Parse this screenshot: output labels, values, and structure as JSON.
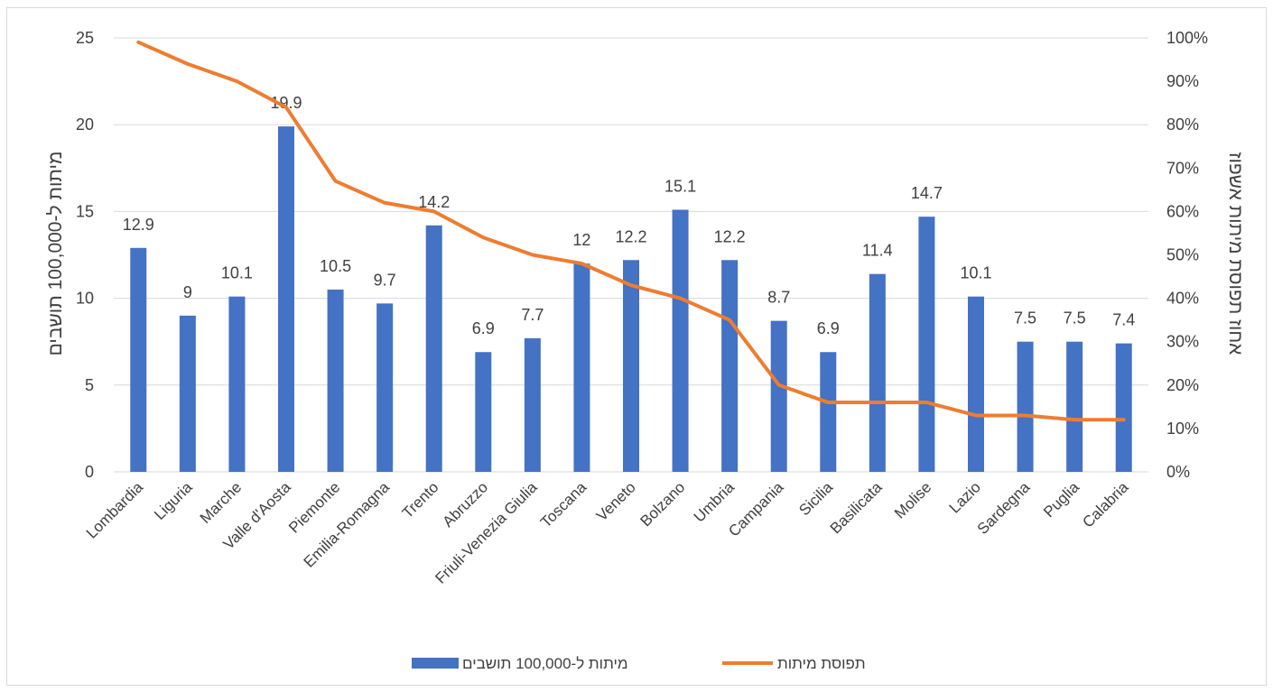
{
  "chart_data": {
    "type": "bar",
    "categories": [
      "Lombardia",
      "Liguria",
      "Marche",
      "Valle d'Aosta",
      "Piemonte",
      "Emilia-Romagna",
      "Trento",
      "Abruzzo",
      "Friuli-Venezia Giulia",
      "Toscana",
      "Veneto",
      "Bolzano",
      "Umbria",
      "Campania",
      "Sicilia",
      "Basilicata",
      "Molise",
      "Lazio",
      "Sardegna",
      "Puglia",
      "Calabria"
    ],
    "series": [
      {
        "name": "מיתות ל-100,000 תושבים",
        "type": "bar",
        "axis": "left",
        "color": "#4472c4",
        "values": [
          12.9,
          9,
          10.1,
          19.9,
          10.5,
          9.7,
          14.2,
          6.9,
          7.7,
          12,
          12.2,
          15.1,
          12.2,
          8.7,
          6.9,
          11.4,
          14.7,
          10.1,
          7.5,
          7.5,
          7.4
        ],
        "value_labels": [
          "12.9",
          "9",
          "10.1",
          "19.9",
          "10.5",
          "9.7",
          "14.2",
          "6.9",
          "7.7",
          "12",
          "12.2",
          "15.1",
          "12.2",
          "8.7",
          "6.9",
          "11.4",
          "14.7",
          "10.1",
          "7.5",
          "7.5",
          "7.4"
        ]
      },
      {
        "name": "תפוסת מיתות",
        "type": "line",
        "axis": "right",
        "color": "#ed7d31",
        "values": [
          0.99,
          0.94,
          0.9,
          0.84,
          0.67,
          0.62,
          0.6,
          0.54,
          0.5,
          0.48,
          0.43,
          0.4,
          0.35,
          0.2,
          0.16,
          0.16,
          0.16,
          0.13,
          0.13,
          0.12,
          0.12
        ]
      }
    ],
    "ylabel_left": "מיתות ל-100,000 תושבים",
    "ylabel_right": "אחוז תפוסת מיתות אשפוז",
    "ylim_left": [
      0,
      25
    ],
    "ylim_right": [
      0,
      1
    ],
    "y_ticks_left": [
      "0",
      "5",
      "10",
      "15",
      "20",
      "25"
    ],
    "y_ticks_right": [
      "0%",
      "10%",
      "20%",
      "30%",
      "40%",
      "50%",
      "60%",
      "70%",
      "80%",
      "90%",
      "100%"
    ],
    "grid": true,
    "legend_position": "bottom",
    "gridline_color": "#d9d9d9"
  }
}
